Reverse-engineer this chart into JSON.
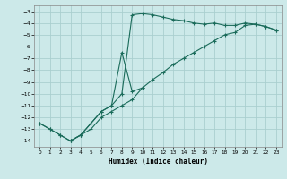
{
  "xlabel": "Humidex (Indice chaleur)",
  "background_color": "#cce9e9",
  "grid_color": "#aacfcf",
  "line_color": "#1a6b5a",
  "xlim": [
    -0.5,
    23.5
  ],
  "ylim": [
    -14.5,
    -2.5
  ],
  "yticks": [
    -3,
    -4,
    -5,
    -6,
    -7,
    -8,
    -9,
    -10,
    -11,
    -12,
    -13,
    -14
  ],
  "xticks": [
    0,
    1,
    2,
    3,
    4,
    5,
    6,
    7,
    8,
    9,
    10,
    11,
    12,
    13,
    14,
    15,
    16,
    17,
    18,
    19,
    20,
    21,
    22,
    23
  ],
  "series1_x": [
    0,
    1,
    2,
    3,
    4,
    5,
    6,
    7,
    8,
    9,
    10,
    11,
    12,
    13,
    14,
    15,
    16,
    17,
    18,
    19,
    20,
    21,
    22,
    23
  ],
  "series1_y": [
    -12.5,
    -13.0,
    -13.5,
    -14.0,
    -13.5,
    -12.5,
    -11.5,
    -11.0,
    -10.0,
    -3.3,
    -3.2,
    -3.3,
    -3.5,
    -3.7,
    -3.8,
    -4.0,
    -4.1,
    -4.0,
    -4.2,
    -4.2,
    -4.0,
    -4.1,
    -4.3,
    -4.6
  ],
  "series2_x": [
    0,
    1,
    2,
    3,
    4,
    5,
    6,
    7,
    8,
    9,
    10,
    11,
    12,
    13,
    14,
    15,
    16,
    17,
    18,
    19,
    20,
    21,
    22,
    23
  ],
  "series2_y": [
    -12.5,
    -13.0,
    -13.5,
    -14.0,
    -13.5,
    -13.0,
    -12.0,
    -11.5,
    -11.0,
    -10.5,
    -9.5,
    -8.8,
    -8.2,
    -7.5,
    -7.0,
    -6.5,
    -6.0,
    -5.5,
    -5.0,
    -4.8,
    -4.2,
    -4.1,
    -4.3,
    -4.6
  ],
  "series3_x": [
    3,
    4,
    5,
    6,
    7,
    8,
    9,
    10
  ],
  "series3_y": [
    -14.0,
    -13.5,
    -12.5,
    -11.5,
    -11.0,
    -6.5,
    -9.8,
    -9.5
  ]
}
